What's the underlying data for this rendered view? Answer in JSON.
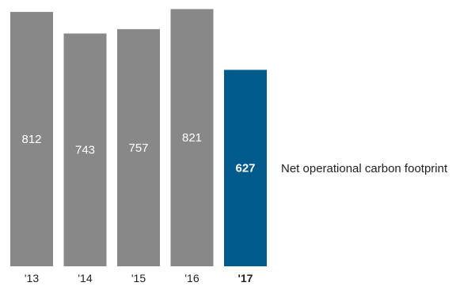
{
  "chart_data": {
    "type": "bar",
    "categories": [
      "'13",
      "'14",
      "'15",
      "'16",
      "'17"
    ],
    "values": [
      812,
      743,
      757,
      821,
      627
    ],
    "highlight_index": 4,
    "legend": "Net operational carbon footprint",
    "ylim": [
      0,
      850
    ],
    "grid": false,
    "title": "",
    "xlabel": "",
    "ylabel": ""
  },
  "colors": {
    "bar": "#888888",
    "highlight": "#005a8c",
    "label_light": "#ffffff",
    "axis_text": "#222222"
  }
}
